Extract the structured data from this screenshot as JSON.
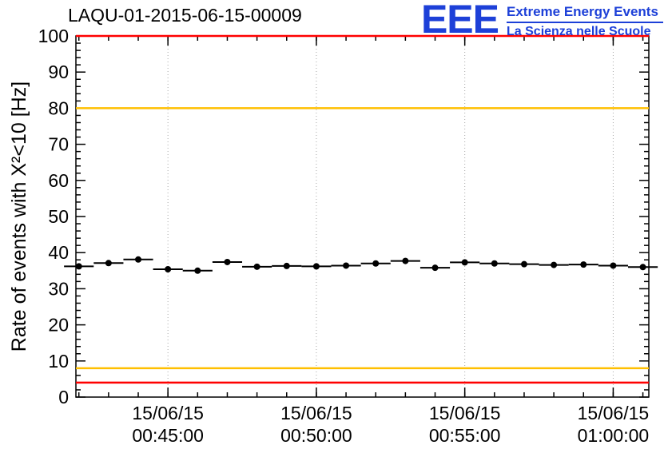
{
  "header": {
    "title": "LAQU-01-2015-06-15-00009",
    "logo": {
      "acronym": "EEE",
      "line1": "Extreme Energy Events",
      "line2": "La Scienza nelle Scuole",
      "color": "#1d40d8"
    }
  },
  "chart_data": {
    "type": "scatter",
    "title": "LAQU-01-2015-06-15-00009",
    "ylabel": "Rate of events with X²<10 [Hz]",
    "xlabel": "",
    "ylim": [
      0,
      100
    ],
    "xlim_minutes": [
      41.9,
      61.2
    ],
    "y_major_step": 10,
    "y_minor_step": 2,
    "x_minor_step": 1,
    "grid": {
      "vertical_dotted": true,
      "color": "#a8a8a8"
    },
    "x_major_ticks": [
      {
        "minute": 45,
        "label_date": "15/06/15",
        "label_time": "00:45:00"
      },
      {
        "minute": 50,
        "label_date": "15/06/15",
        "label_time": "00:50:00"
      },
      {
        "minute": 55,
        "label_date": "15/06/15",
        "label_time": "00:55:00"
      },
      {
        "minute": 60,
        "label_date": "15/06/15",
        "label_time": "01:00:00"
      }
    ],
    "thresholds": [
      {
        "value": 100,
        "color": "#ff0000"
      },
      {
        "value": 80,
        "color": "#ffbf00"
      },
      {
        "value": 8,
        "color": "#ffbf00"
      },
      {
        "value": 4,
        "color": "#ff0000"
      }
    ],
    "series": [
      {
        "name": "event-rate",
        "marker_color": "#000000",
        "x_err_minutes": 0.5,
        "points": [
          {
            "minute": 42,
            "rate": 36.2
          },
          {
            "minute": 43,
            "rate": 37.1
          },
          {
            "minute": 44,
            "rate": 38.1
          },
          {
            "minute": 45,
            "rate": 35.4
          },
          {
            "minute": 46,
            "rate": 35.0
          },
          {
            "minute": 47,
            "rate": 37.4
          },
          {
            "minute": 48,
            "rate": 36.1
          },
          {
            "minute": 49,
            "rate": 36.3
          },
          {
            "minute": 50,
            "rate": 36.2
          },
          {
            "minute": 51,
            "rate": 36.4
          },
          {
            "minute": 52,
            "rate": 37.0
          },
          {
            "minute": 53,
            "rate": 37.7
          },
          {
            "minute": 54,
            "rate": 35.8
          },
          {
            "minute": 55,
            "rate": 37.3
          },
          {
            "minute": 56,
            "rate": 37.0
          },
          {
            "minute": 57,
            "rate": 36.8
          },
          {
            "minute": 58,
            "rate": 36.6
          },
          {
            "minute": 59,
            "rate": 36.7
          },
          {
            "minute": 60,
            "rate": 36.4
          },
          {
            "minute": 61,
            "rate": 36.0
          }
        ]
      }
    ]
  }
}
